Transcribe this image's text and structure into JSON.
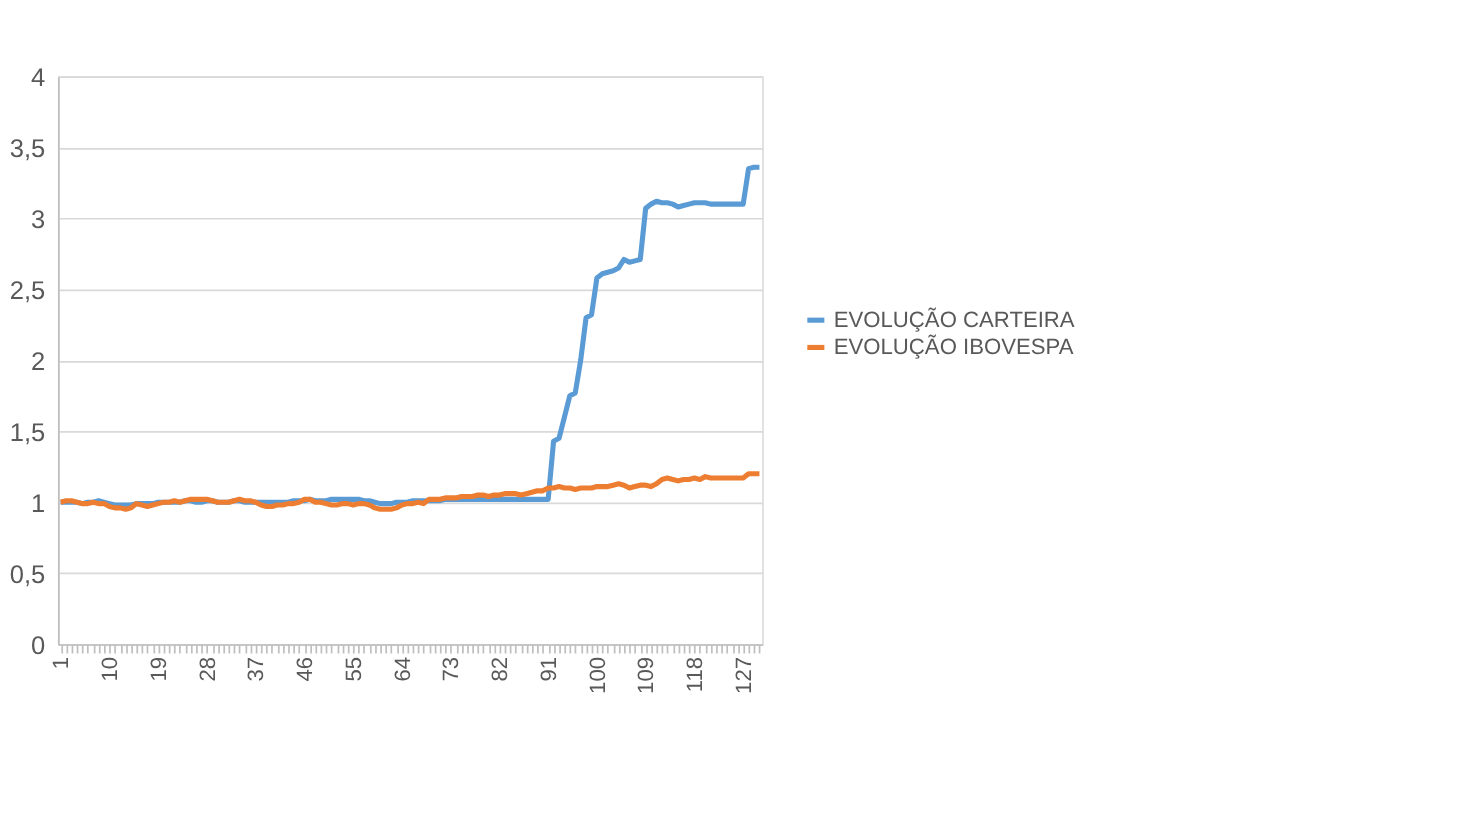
{
  "chart_data": {
    "type": "line",
    "categories": [
      "1",
      null,
      null,
      null,
      null,
      null,
      null,
      null,
      null,
      "10",
      null,
      null,
      null,
      null,
      null,
      null,
      null,
      null,
      "19",
      null,
      null,
      null,
      null,
      null,
      null,
      null,
      null,
      "28",
      null,
      null,
      null,
      null,
      null,
      null,
      null,
      null,
      "37",
      null,
      null,
      null,
      null,
      null,
      null,
      null,
      null,
      "46",
      null,
      null,
      null,
      null,
      null,
      null,
      null,
      null,
      "55",
      null,
      null,
      null,
      null,
      null,
      null,
      null,
      null,
      "64",
      null,
      null,
      null,
      null,
      null,
      null,
      null,
      null,
      "73",
      null,
      null,
      null,
      null,
      null,
      null,
      null,
      null,
      "82",
      null,
      null,
      null,
      null,
      null,
      null,
      null,
      null,
      "91",
      null,
      null,
      null,
      null,
      null,
      null,
      null,
      null,
      "100",
      null,
      null,
      null,
      null,
      null,
      null,
      null,
      null,
      "109",
      null,
      null,
      null,
      null,
      null,
      null,
      null,
      null,
      "118",
      null,
      null,
      null,
      null,
      null,
      null,
      null,
      null,
      "127",
      null,
      null,
      null
    ],
    "series": [
      {
        "name": "EVOLUÇÃO CARTEIRA",
        "color": "#5b9bd5",
        "values": [
          1.0,
          1.0,
          1.0,
          1.0,
          0.99,
          1.0,
          1.0,
          1.01,
          1.0,
          0.99,
          0.98,
          0.98,
          0.98,
          0.98,
          0.99,
          0.99,
          0.99,
          0.99,
          1.0,
          1.0,
          1.0,
          1.0,
          1.0,
          1.01,
          1.01,
          1.0,
          1.0,
          1.01,
          1.01,
          1.0,
          1.0,
          1.0,
          1.01,
          1.01,
          1.0,
          1.0,
          1.0,
          1.0,
          1.0,
          1.0,
          1.0,
          1.0,
          1.0,
          1.01,
          1.01,
          1.01,
          1.02,
          1.01,
          1.01,
          1.01,
          1.02,
          1.02,
          1.02,
          1.02,
          1.02,
          1.02,
          1.01,
          1.01,
          1.0,
          0.99,
          0.99,
          0.99,
          1.0,
          1.0,
          1.0,
          1.01,
          1.01,
          1.01,
          1.01,
          1.01,
          1.01,
          1.02,
          1.02,
          1.02,
          1.02,
          1.02,
          1.02,
          1.02,
          1.02,
          1.02,
          1.02,
          1.02,
          1.02,
          1.02,
          1.02,
          1.02,
          1.02,
          1.02,
          1.02,
          1.02,
          1.02,
          1.43,
          1.45,
          1.6,
          1.75,
          1.77,
          2.0,
          2.3,
          2.32,
          2.58,
          2.61,
          2.62,
          2.63,
          2.65,
          2.71,
          2.69,
          2.7,
          2.71,
          3.07,
          3.1,
          3.12,
          3.11,
          3.11,
          3.1,
          3.08,
          3.09,
          3.1,
          3.11,
          3.11,
          3.11,
          3.1,
          3.1,
          3.1,
          3.1,
          3.1,
          3.1,
          3.1,
          3.35,
          3.36,
          3.36
        ]
      },
      {
        "name": "EVOLUÇÃO IBOVESPA",
        "color": "#ed7d31",
        "values": [
          1.0,
          1.01,
          1.01,
          1.0,
          0.99,
          0.99,
          1.0,
          0.99,
          0.99,
          0.97,
          0.96,
          0.96,
          0.95,
          0.96,
          0.99,
          0.98,
          0.97,
          0.98,
          0.99,
          1.0,
          1.0,
          1.01,
          1.0,
          1.01,
          1.02,
          1.02,
          1.02,
          1.02,
          1.01,
          1.0,
          1.0,
          1.0,
          1.01,
          1.02,
          1.01,
          1.01,
          1.0,
          0.98,
          0.97,
          0.97,
          0.98,
          0.98,
          0.99,
          0.99,
          1.0,
          1.02,
          1.02,
          1.0,
          1.0,
          0.99,
          0.98,
          0.98,
          0.99,
          0.99,
          0.98,
          0.99,
          0.99,
          0.98,
          0.96,
          0.95,
          0.95,
          0.95,
          0.96,
          0.98,
          0.99,
          0.99,
          1.0,
          0.99,
          1.02,
          1.02,
          1.02,
          1.03,
          1.03,
          1.03,
          1.04,
          1.04,
          1.04,
          1.05,
          1.05,
          1.04,
          1.05,
          1.05,
          1.06,
          1.06,
          1.06,
          1.05,
          1.06,
          1.07,
          1.08,
          1.08,
          1.1,
          1.1,
          1.11,
          1.1,
          1.1,
          1.09,
          1.1,
          1.1,
          1.1,
          1.11,
          1.11,
          1.11,
          1.12,
          1.13,
          1.12,
          1.1,
          1.11,
          1.12,
          1.12,
          1.11,
          1.13,
          1.16,
          1.17,
          1.16,
          1.15,
          1.16,
          1.16,
          1.17,
          1.16,
          1.18,
          1.17,
          1.17,
          1.17,
          1.17,
          1.17,
          1.17,
          1.17,
          1.2,
          1.2,
          1.2
        ]
      }
    ],
    "ylim": [
      0,
      4
    ],
    "yticks": [
      0,
      {
        "value": 0.5,
        "label": "0,5"
      },
      1,
      {
        "value": 1.5,
        "label": "1,5"
      },
      2,
      {
        "value": 2.5,
        "label": "2,5"
      },
      3,
      {
        "value": 3.5,
        "label": "3,5"
      },
      4
    ],
    "grid": "y",
    "legend": "right",
    "marker": "none",
    "line_style": "solid"
  }
}
